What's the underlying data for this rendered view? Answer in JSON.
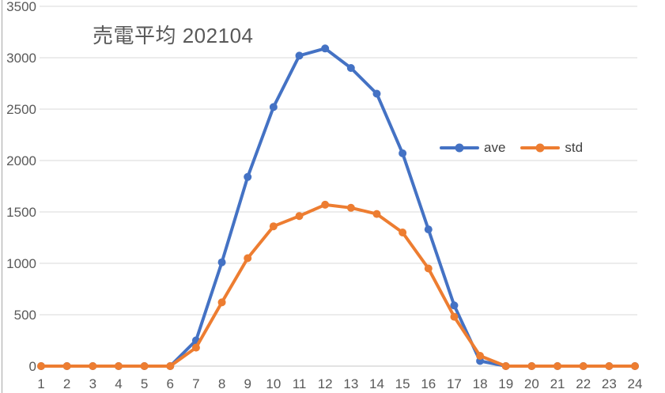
{
  "chart_data": {
    "type": "line",
    "title": "売電平均 202104",
    "xlabel": "",
    "ylabel": "",
    "x": [
      1,
      2,
      3,
      4,
      5,
      6,
      7,
      8,
      9,
      10,
      11,
      12,
      13,
      14,
      15,
      16,
      17,
      18,
      19,
      20,
      21,
      22,
      23,
      24
    ],
    "series": [
      {
        "name": "ave",
        "color": "#4472C4",
        "values": [
          0,
          0,
          0,
          0,
          0,
          0,
          250,
          1010,
          1840,
          2520,
          3020,
          3090,
          2900,
          2650,
          2070,
          1330,
          590,
          50,
          0,
          0,
          0,
          0,
          0,
          0
        ]
      },
      {
        "name": "std",
        "color": "#ED7D31",
        "values": [
          0,
          0,
          0,
          0,
          0,
          0,
          180,
          620,
          1050,
          1360,
          1460,
          1570,
          1540,
          1480,
          1300,
          950,
          480,
          100,
          0,
          0,
          0,
          0,
          0,
          0
        ]
      }
    ],
    "ylim": [
      0,
      3500
    ],
    "ytick_step": 500,
    "grid": true,
    "legend_position": "middle-right"
  },
  "colors": {
    "grid": "#D9D9D9",
    "axis_line": "#C6C6C6",
    "axis_text": "#595959",
    "title_text": "#595959",
    "legend_text": "#404040",
    "border": "#A6A6A6",
    "background": "#FFFFFF"
  }
}
